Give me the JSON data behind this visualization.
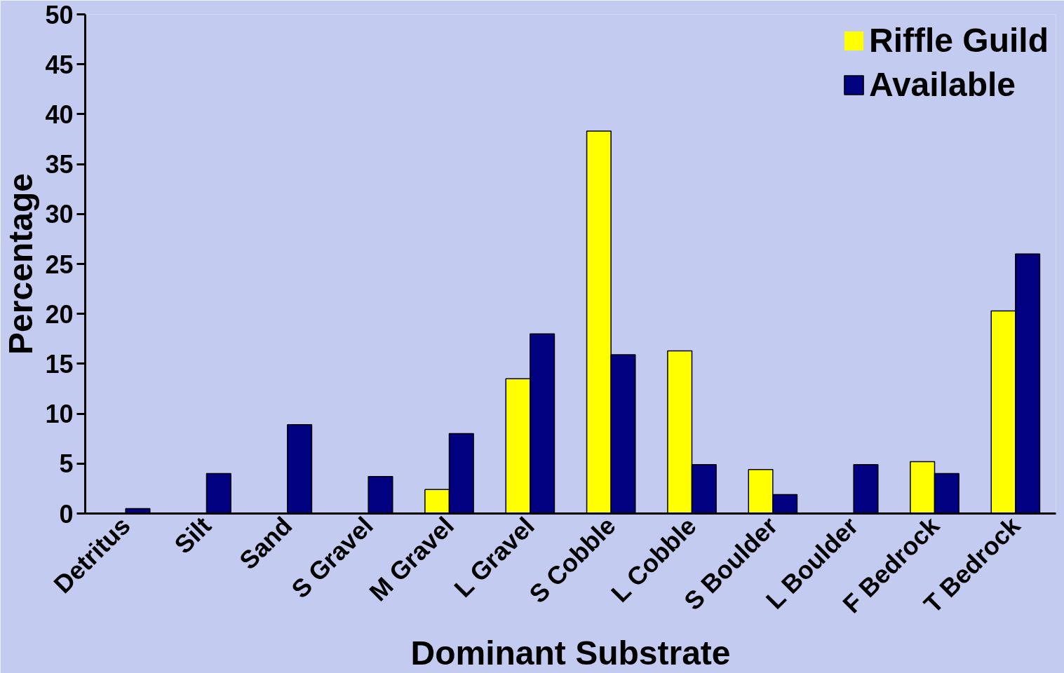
{
  "chart_data": {
    "type": "bar",
    "xlabel": "Dominant Substrate",
    "ylabel": "Percentage",
    "categories": [
      "Detritus",
      "Silt",
      "Sand",
      "S Gravel",
      "M Gravel",
      "L Gravel",
      "S Cobble",
      "L Cobble",
      "S Boulder",
      "L Boulder",
      "F Bedrock",
      "T Bedrock"
    ],
    "series": [
      {
        "name": "Riffle Guild",
        "color": "#ffff00",
        "values": [
          0,
          0,
          0,
          0,
          2.4,
          13.5,
          38.3,
          16.3,
          4.4,
          0,
          5.2,
          20.3
        ]
      },
      {
        "name": "Available",
        "color": "#000080",
        "values": [
          0.5,
          4.0,
          8.9,
          3.7,
          8.0,
          18.0,
          15.9,
          4.9,
          1.9,
          4.9,
          4.0,
          26.0
        ]
      }
    ],
    "ylim": [
      0,
      50
    ],
    "yticks": [
      0,
      5,
      10,
      15,
      20,
      25,
      30,
      35,
      40,
      45,
      50
    ],
    "grid": false,
    "legend": "top right"
  }
}
